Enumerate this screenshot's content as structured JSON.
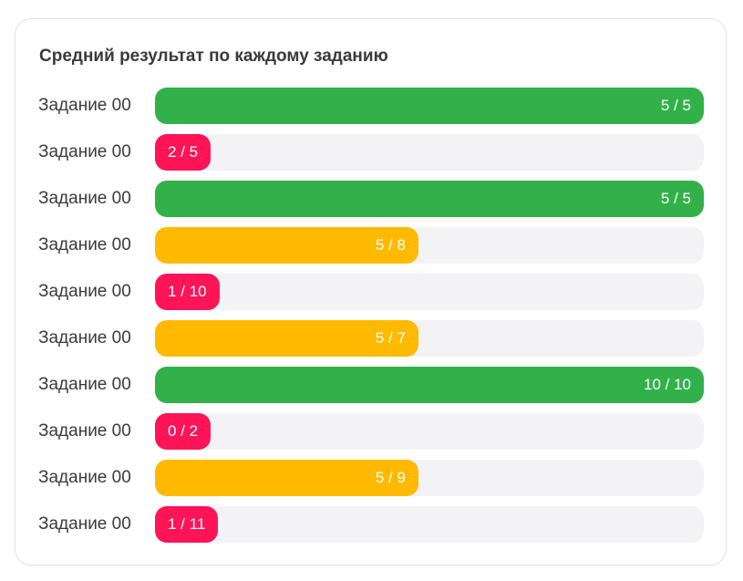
{
  "chart_data": {
    "type": "bar",
    "orientation": "horizontal",
    "title": "Средний результат по каждому заданию",
    "colors": {
      "high": "#32b14a",
      "medium": "#ffba00",
      "low": "#ff1457",
      "track": "#f3f3f6"
    },
    "rows": [
      {
        "label": "Задание 00",
        "score": 5,
        "max": 5,
        "value_label": "5 / 5",
        "level": "high",
        "fill": 1.0
      },
      {
        "label": "Задание 00",
        "score": 2,
        "max": 5,
        "value_label": "2 / 5",
        "level": "low",
        "fill": 0
      },
      {
        "label": "Задание 00",
        "score": 5,
        "max": 5,
        "value_label": "5 / 5",
        "level": "high",
        "fill": 1.0
      },
      {
        "label": "Задание 00",
        "score": 5,
        "max": 8,
        "value_label": "5 / 8",
        "level": "medium",
        "fill": 0.48
      },
      {
        "label": "Задание 00",
        "score": 1,
        "max": 10,
        "value_label": "1 / 10",
        "level": "low",
        "fill": 0
      },
      {
        "label": "Задание 00",
        "score": 5,
        "max": 7,
        "value_label": "5 / 7",
        "level": "medium",
        "fill": 0.48
      },
      {
        "label": "Задание 00",
        "score": 10,
        "max": 10,
        "value_label": "10 / 10",
        "level": "high",
        "fill": 1.0
      },
      {
        "label": "Задание 00",
        "score": 0,
        "max": 2,
        "value_label": "0 / 2",
        "level": "low",
        "fill": 0
      },
      {
        "label": "Задание 00",
        "score": 5,
        "max": 9,
        "value_label": "5 / 9",
        "level": "medium",
        "fill": 0.48
      },
      {
        "label": "Задание 00",
        "score": 1,
        "max": 11,
        "value_label": "1 / 11",
        "level": "low",
        "fill": 0
      }
    ]
  }
}
